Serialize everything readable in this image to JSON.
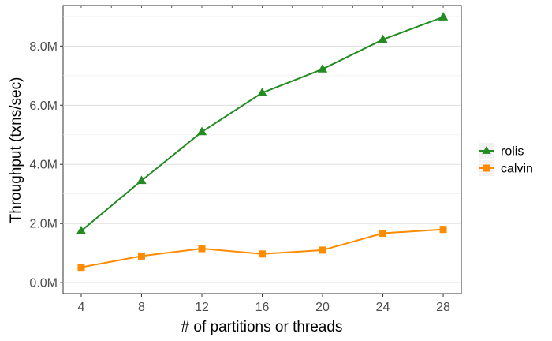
{
  "chart_data": {
    "type": "line",
    "title": "",
    "xlabel": "# of partitions or threads",
    "ylabel": "Throughput (txns/sec)",
    "x": [
      4,
      8,
      12,
      16,
      20,
      24,
      28
    ],
    "xticks": [
      "4",
      "8",
      "12",
      "16",
      "20",
      "24",
      "28"
    ],
    "ylim": [
      0,
      9000000
    ],
    "yticks": [
      0,
      2000000,
      4000000,
      6000000,
      8000000
    ],
    "ytick_labels": [
      "0.0M",
      "2.0M",
      "4.0M",
      "6.0M",
      "8.0M"
    ],
    "grid": "horizontal",
    "legend_position": "right",
    "series": [
      {
        "name": "rolis",
        "color": "#228B22",
        "marker": "triangle",
        "values": [
          1750000,
          3450000,
          5100000,
          6420000,
          7220000,
          8220000,
          8980000
        ]
      },
      {
        "name": "calvin",
        "color": "#FF8C00",
        "marker": "square",
        "values": [
          520000,
          900000,
          1150000,
          970000,
          1100000,
          1670000,
          1800000
        ]
      }
    ]
  }
}
